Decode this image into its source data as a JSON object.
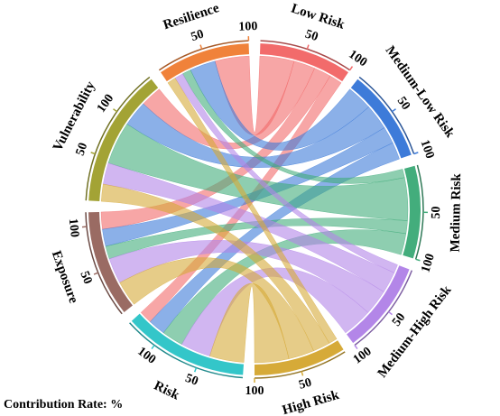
{
  "chart_data": {
    "type": "chord",
    "unit_label": "Contribution Rate: %",
    "categories": [
      "Risk",
      "Exposure",
      "Vulnerability",
      "Resilience"
    ],
    "category_colors": [
      "#33c6c9",
      "#9a6b63",
      "#a3a335",
      "#f0823a"
    ],
    "series": [
      {
        "name": "Low Risk",
        "color": "#f26b6b",
        "values": [
          15,
          20,
          25,
          40
        ]
      },
      {
        "name": "Medium-Low Risk",
        "color": "#3d7bd9",
        "values": [
          20,
          20,
          30,
          30
        ]
      },
      {
        "name": "Medium Risk",
        "color": "#43ad7c",
        "values": [
          25,
          15,
          50,
          10
        ]
      },
      {
        "name": "Medium-High Risk",
        "color": "#b386e8",
        "values": [
          35,
          30,
          25,
          10
        ]
      },
      {
        "name": "High Risk",
        "color": "#d6aa38",
        "values": [
          40,
          30,
          20,
          10
        ]
      }
    ],
    "ticks": [
      50,
      100
    ]
  }
}
